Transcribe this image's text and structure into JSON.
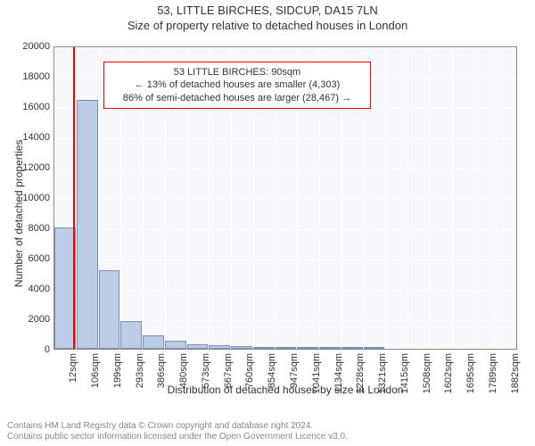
{
  "title_main": "53, LITTLE BIRCHES, SIDCUP, DA15 7LN",
  "title_sub": "Size of property relative to detached houses in London",
  "chart": {
    "type": "histogram",
    "background_color": "#f6f8fc",
    "bar_color": "#becde6",
    "bar_border_color": "#7a8fb8",
    "grid_color": "#ffffff",
    "plot_border_color": "#888888",
    "marker_line_color": "#ff0000",
    "annotation_border_color": "#ff0000",
    "y_label": "Number of detached properties",
    "x_label": "Distribution of detached houses by size in London",
    "y_max": 20000,
    "y_ticks": [
      0,
      2000,
      4000,
      6000,
      8000,
      10000,
      12000,
      14000,
      16000,
      18000,
      20000
    ],
    "x_ticks": [
      "12sqm",
      "106sqm",
      "199sqm",
      "293sqm",
      "386sqm",
      "480sqm",
      "573sqm",
      "667sqm",
      "760sqm",
      "854sqm",
      "947sqm",
      "1041sqm",
      "1134sqm",
      "1228sqm",
      "1321sqm",
      "1415sqm",
      "1508sqm",
      "1602sqm",
      "1695sqm",
      "1789sqm",
      "1882sqm"
    ],
    "bars": [
      {
        "x_index": 0,
        "value": 8000
      },
      {
        "x_index": 1,
        "value": 16400
      },
      {
        "x_index": 2,
        "value": 5200
      },
      {
        "x_index": 3,
        "value": 1800
      },
      {
        "x_index": 4,
        "value": 900
      },
      {
        "x_index": 5,
        "value": 520
      },
      {
        "x_index": 6,
        "value": 280
      },
      {
        "x_index": 7,
        "value": 220
      },
      {
        "x_index": 8,
        "value": 160
      },
      {
        "x_index": 9,
        "value": 80
      },
      {
        "x_index": 10,
        "value": 60
      },
      {
        "x_index": 11,
        "value": 40
      },
      {
        "x_index": 12,
        "value": 30
      },
      {
        "x_index": 13,
        "value": 25
      },
      {
        "x_index": 14,
        "value": 20
      }
    ],
    "marker_position_sqm": 90,
    "annotation": {
      "line1": "53 LITTLE BIRCHES: 90sqm",
      "line2": "← 13% of detached houses are smaller (4,303)",
      "line3": "86% of semi-detached houses are larger (28,467) →"
    }
  },
  "footer": {
    "line1": "Contains HM Land Registry data © Crown copyright and database right 2024.",
    "line2": "Contains public sector information licensed under the Open Government Licence v3.0."
  }
}
